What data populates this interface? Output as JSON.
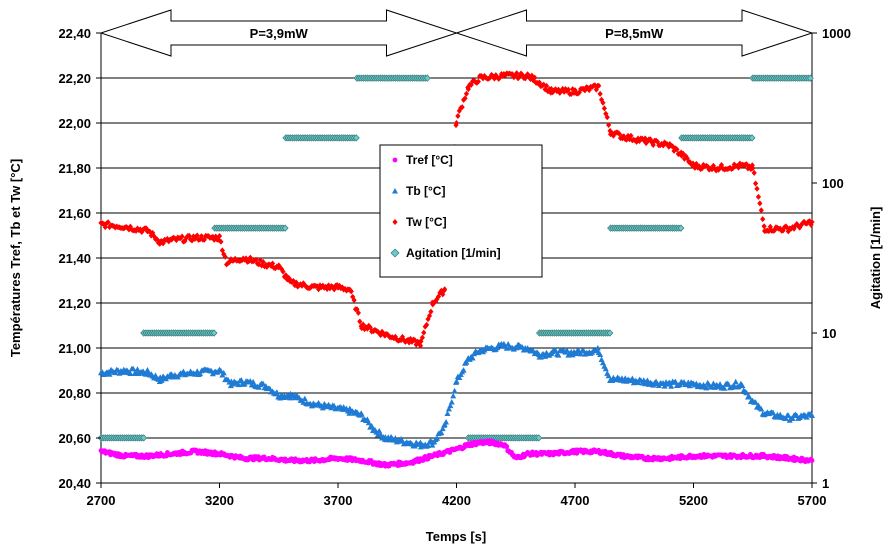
{
  "chart_data": {
    "type": "scatter",
    "xlabel": "Temps [s]",
    "ylabel": "Températures Tref, Tb et Tw [°C]",
    "y2label": "Agitation [1/min]",
    "xlim": [
      2700,
      5700
    ],
    "ylim": [
      20.4,
      22.4
    ],
    "y2lim": [
      1,
      1000
    ],
    "y2scale": "log",
    "xticks": [
      "2700",
      "3200",
      "3700",
      "4200",
      "4700",
      "5200",
      "5700"
    ],
    "yticks": [
      "20,40",
      "20,60",
      "20,80",
      "21,00",
      "21,20",
      "21,40",
      "21,60",
      "21,80",
      "22,00",
      "22,20",
      "22,40"
    ],
    "y2ticks": [
      "1",
      "10",
      "100",
      "1000"
    ],
    "grid": "horizontal",
    "legend_position": "center",
    "annotations": [
      {
        "text": "P=3,9mW",
        "x_start": 2700,
        "x_end": 4200
      },
      {
        "text": "P=8,5mW",
        "x_start": 4200,
        "x_end": 5700
      }
    ],
    "series": [
      {
        "name": "Tref [°C]",
        "color": "#ff00ff",
        "marker": "circle",
        "axis": "left",
        "x": [
          2700,
          2800,
          2900,
          3000,
          3100,
          3200,
          3300,
          3400,
          3500,
          3600,
          3700,
          3800,
          3900,
          4000,
          4100,
          4200,
          4250,
          4300,
          4350,
          4400,
          4450,
          4500,
          4600,
          4700,
          4800,
          4900,
          5000,
          5100,
          5200,
          5300,
          5400,
          5500,
          5600,
          5700
        ],
        "y": [
          20.54,
          20.52,
          20.52,
          20.53,
          20.54,
          20.53,
          20.51,
          20.51,
          20.5,
          20.5,
          20.51,
          20.5,
          20.48,
          20.49,
          20.52,
          20.55,
          20.57,
          20.58,
          20.58,
          20.57,
          20.51,
          20.53,
          20.53,
          20.54,
          20.54,
          20.52,
          20.51,
          20.51,
          20.52,
          20.52,
          20.52,
          20.52,
          20.51,
          20.5
        ]
      },
      {
        "name": "Tb [°C]",
        "color": "#1f7bd4",
        "marker": "triangle",
        "axis": "left",
        "x": [
          2700,
          2800,
          2900,
          2950,
          3000,
          3100,
          3200,
          3250,
          3300,
          3400,
          3450,
          3500,
          3600,
          3700,
          3750,
          3800,
          3850,
          3900,
          4000,
          4050,
          4100,
          4150,
          4200,
          4250,
          4300,
          4400,
          4500,
          4550,
          4600,
          4700,
          4800,
          4850,
          4900,
          5000,
          5100,
          5200,
          5300,
          5400,
          5450,
          5500,
          5600,
          5700
        ],
        "y": [
          20.89,
          20.9,
          20.89,
          20.86,
          20.88,
          20.89,
          20.9,
          20.84,
          20.85,
          20.83,
          20.79,
          20.79,
          20.75,
          20.73,
          20.72,
          20.7,
          20.64,
          20.6,
          20.58,
          20.57,
          20.58,
          20.65,
          20.85,
          20.95,
          20.99,
          21.01,
          21.0,
          20.97,
          20.98,
          20.98,
          20.99,
          20.86,
          20.86,
          20.85,
          20.84,
          20.84,
          20.83,
          20.84,
          20.76,
          20.71,
          20.69,
          20.7
        ]
      },
      {
        "name": "Tw [°C]",
        "color": "#ff0000",
        "marker": "diamond",
        "axis": "left",
        "x": [
          2700,
          2800,
          2900,
          2950,
          3000,
          3100,
          3200,
          3230,
          3300,
          3400,
          3450,
          3500,
          3600,
          3700,
          3750,
          3800,
          3850,
          3900,
          4000,
          4050,
          4100,
          4150,
          4200,
          4250,
          4300,
          4400,
          4500,
          4550,
          4600,
          4700,
          4800,
          4850,
          4900,
          5000,
          5100,
          5150,
          5200,
          5300,
          5400,
          5450,
          5500,
          5600,
          5700
        ],
        "y": [
          21.55,
          21.54,
          21.52,
          21.47,
          21.48,
          21.49,
          21.49,
          21.38,
          21.4,
          21.37,
          21.36,
          21.29,
          21.27,
          21.27,
          21.26,
          21.1,
          21.08,
          21.06,
          21.03,
          21.02,
          21.2,
          21.26,
          22.01,
          22.16,
          22.2,
          22.21,
          22.21,
          22.18,
          22.14,
          22.14,
          22.16,
          21.96,
          21.94,
          21.92,
          21.9,
          21.86,
          21.81,
          21.8,
          21.81,
          21.8,
          21.53,
          21.53,
          21.56
        ]
      },
      {
        "name": "Agitation [1/min]",
        "color": "#66cccc",
        "marker": "diamond",
        "axis": "right",
        "segments": [
          {
            "x_start": 2700,
            "x_end": 2880,
            "y": 2
          },
          {
            "x_start": 2880,
            "x_end": 3180,
            "y": 10
          },
          {
            "x_start": 3180,
            "x_end": 3480,
            "y": 50
          },
          {
            "x_start": 3480,
            "x_end": 3780,
            "y": 200
          },
          {
            "x_start": 3780,
            "x_end": 4080,
            "y": 500
          },
          {
            "x_start": 4250,
            "x_end": 4550,
            "y": 2
          },
          {
            "x_start": 4550,
            "x_end": 4850,
            "y": 10
          },
          {
            "x_start": 4850,
            "x_end": 5150,
            "y": 50
          },
          {
            "x_start": 5150,
            "x_end": 5450,
            "y": 200
          },
          {
            "x_start": 5450,
            "x_end": 5700,
            "y": 500
          }
        ]
      }
    ]
  }
}
